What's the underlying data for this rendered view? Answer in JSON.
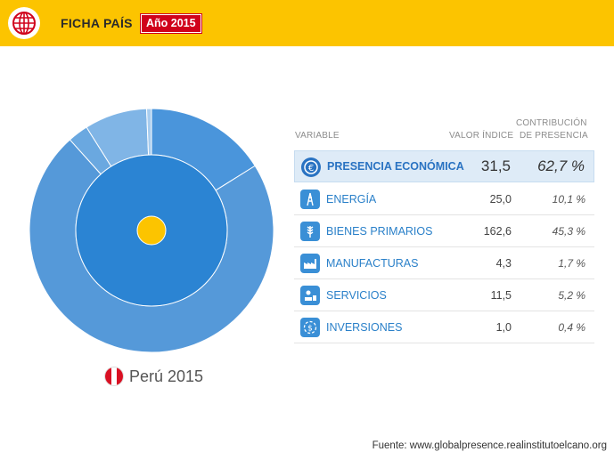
{
  "header": {
    "title": "FICHA PAÍS",
    "year_badge": "Año 2015",
    "logo_icon": "globe-icon",
    "background": "#fcc400",
    "badge_color": "#d0021b"
  },
  "country_label": "Perú 2015",
  "table": {
    "headers": {
      "variable": "VARIABLE",
      "index": "VALOR ÍNDICE",
      "contribution_line1": "CONTRIBUCIÓN",
      "contribution_line2": "DE PRESENCIA"
    },
    "rows": [
      {
        "icon": "euro-icon",
        "label": "PRESENCIA ECONÓMICA",
        "index": "31,5",
        "contribution": "62,7 %"
      },
      {
        "icon": "energy-tower-icon",
        "label": "ENERGÍA",
        "index": "25,0",
        "contribution": "10,1 %"
      },
      {
        "icon": "wheat-icon",
        "label": "BIENES PRIMARIOS",
        "index": "162,6",
        "contribution": "45,3 %"
      },
      {
        "icon": "factory-icon",
        "label": "MANUFACTURAS",
        "index": "4,3",
        "contribution": "1,7 %"
      },
      {
        "icon": "services-icon",
        "label": "SERVICIOS",
        "index": "11,5",
        "contribution": "5,2 %"
      },
      {
        "icon": "investment-icon",
        "label": "INVERSIONES",
        "index": "1,0",
        "contribution": "0,4 %"
      }
    ]
  },
  "source": "Fuente: www.globalpresence.realinstitutoelcano.org",
  "chart_data": {
    "type": "pie",
    "inner_ring": {
      "segments": [
        {
          "value": 62.7,
          "color": "#2b84d3"
        }
      ]
    },
    "outer_ring": {
      "segments": [
        {
          "value": 10.1,
          "color": "#4a95db"
        },
        {
          "value": 45.3,
          "color": "#5599d9"
        },
        {
          "value": 1.7,
          "color": "#6aa8e0"
        },
        {
          "value": 5.2,
          "color": "#80b5e6"
        },
        {
          "value": 0.4,
          "color": "#a8cdef"
        }
      ]
    },
    "center_color": "#fcc400"
  }
}
